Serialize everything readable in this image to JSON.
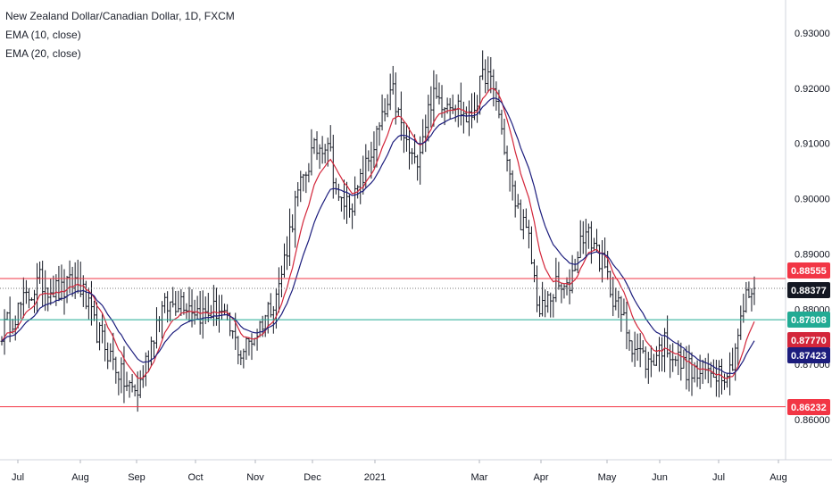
{
  "legend": {
    "title": "New Zealand Dollar/Canadian Dollar, 1D, FXCM",
    "ema10": "EMA (10, close)",
    "ema20": "EMA (20, close)"
  },
  "colors": {
    "candle": "#131722",
    "ema10": "#d3263a",
    "ema20": "#1c1d7d",
    "resistance": "#f23645",
    "support_teal": "#22ab94",
    "price_tag": "#131722",
    "grid_text": "#131722"
  },
  "chart_data": {
    "type": "ohlc",
    "symbol": "New Zealand Dollar/Canadian Dollar",
    "timeframe": "1D",
    "source": "FXCM",
    "ylim": [
      0.8535,
      0.933
    ],
    "y_ticks": [
      "0.93000",
      "0.92000",
      "0.91000",
      "0.90000",
      "0.89000",
      "0.88000",
      "0.87000",
      "0.86000"
    ],
    "x_ticks": [
      "Jul",
      "Aug",
      "Sep",
      "Oct",
      "Nov",
      "Dec",
      "2021",
      "Mar",
      "Apr",
      "May",
      "Jun",
      "Jul",
      "Aug"
    ],
    "bar_count": 278,
    "keypoints": [
      [
        0,
        0.876
      ],
      [
        14,
        0.885
      ],
      [
        22,
        0.883
      ],
      [
        28,
        0.8855
      ],
      [
        34,
        0.877
      ],
      [
        46,
        0.866
      ],
      [
        50,
        0.865
      ],
      [
        58,
        0.8795
      ],
      [
        66,
        0.882
      ],
      [
        74,
        0.879
      ],
      [
        80,
        0.88
      ],
      [
        88,
        0.872
      ],
      [
        94,
        0.876
      ],
      [
        102,
        0.884
      ],
      [
        108,
        0.899
      ],
      [
        114,
        0.908
      ],
      [
        120,
        0.911
      ],
      [
        124,
        0.899
      ],
      [
        130,
        0.9
      ],
      [
        140,
        0.914
      ],
      [
        144,
        0.919
      ],
      [
        148,
        0.911
      ],
      [
        152,
        0.906
      ],
      [
        158,
        0.918
      ],
      [
        166,
        0.918
      ],
      [
        172,
        0.914
      ],
      [
        178,
        0.923
      ],
      [
        182,
        0.918
      ],
      [
        188,
        0.901
      ],
      [
        194,
        0.892
      ],
      [
        198,
        0.879
      ],
      [
        204,
        0.884
      ],
      [
        208,
        0.883
      ],
      [
        214,
        0.894
      ],
      [
        218,
        0.892
      ],
      [
        224,
        0.884
      ],
      [
        232,
        0.874
      ],
      [
        238,
        0.87
      ],
      [
        244,
        0.874
      ],
      [
        250,
        0.87
      ],
      [
        256,
        0.868
      ],
      [
        262,
        0.869
      ],
      [
        268,
        0.869
      ],
      [
        274,
        0.882
      ],
      [
        277,
        0.8838
      ]
    ],
    "levels": [
      {
        "value": 0.88555,
        "label": "0.88555",
        "style": "resistance"
      },
      {
        "value": 0.87808,
        "label": "0.87808",
        "style": "support_teal"
      },
      {
        "value": 0.86232,
        "label": "0.86232",
        "style": "resistance"
      }
    ],
    "last_price": {
      "value": 0.88377,
      "label": "0.88377"
    },
    "series": [
      {
        "name": "EMA (10, close)",
        "period": 10,
        "last": 0.8777,
        "label": "0.87770"
      },
      {
        "name": "EMA (20, close)",
        "period": 20,
        "last": 0.87423,
        "label": "0.87423"
      }
    ]
  }
}
